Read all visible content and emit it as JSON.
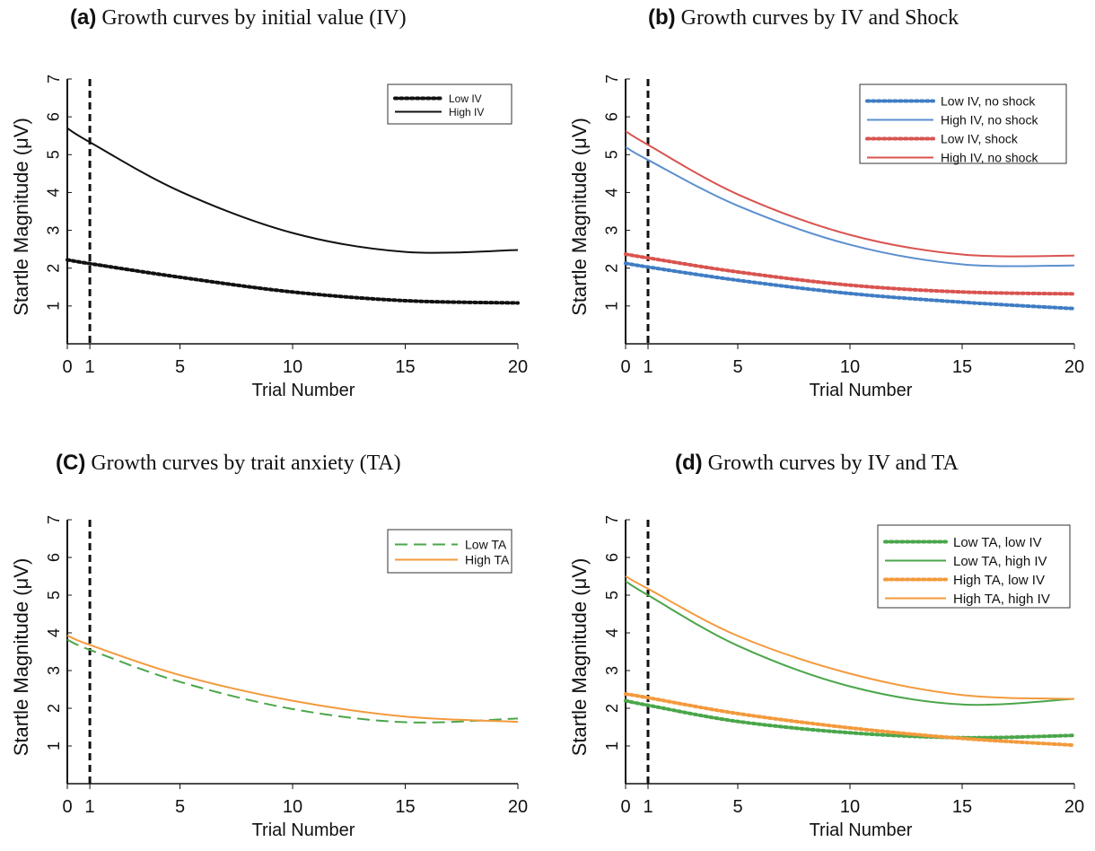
{
  "titles": [
    {
      "tag": "(a)",
      "text": "Growth curves by initial value (IV)"
    },
    {
      "tag": "(b)",
      "text": "Growth curves by IV and Shock"
    },
    {
      "tag": "(C)",
      "text": "Growth curves by trait anxiety (TA)"
    },
    {
      "tag": "(d)",
      "text": "Growth curves by IV and TA"
    }
  ],
  "chart_data": [
    {
      "type": "line",
      "title": "Growth curves by initial value (IV)",
      "xlabel": "Trial Number",
      "ylabel": "Startle Magnitude (μV)",
      "xlim": [
        0,
        20
      ],
      "ylim": [
        0,
        7
      ],
      "xticks": [
        0,
        1,
        5,
        10,
        15,
        20
      ],
      "yticks": [
        1,
        2,
        3,
        4,
        5,
        6,
        7
      ],
      "reference_line_x": 1,
      "legend_position": "top-right",
      "series": [
        {
          "name": "Low IV",
          "color": "#111111",
          "style": "dotted",
          "x": [
            0,
            1,
            5,
            10,
            15,
            20
          ],
          "y": [
            2.22,
            2.12,
            1.76,
            1.37,
            1.14,
            1.08
          ]
        },
        {
          "name": "High IV",
          "color": "#111111",
          "style": "solid",
          "x": [
            0,
            1,
            5,
            10,
            15,
            20
          ],
          "y": [
            5.7,
            5.33,
            4.03,
            2.93,
            2.43,
            2.48
          ]
        }
      ]
    },
    {
      "type": "line",
      "title": "Growth curves by IV and Shock",
      "xlabel": "Trial Number",
      "ylabel": "Startle Magnitude (μV)",
      "xlim": [
        0,
        20
      ],
      "ylim": [
        0,
        7
      ],
      "xticks": [
        0,
        1,
        5,
        10,
        15,
        20
      ],
      "yticks": [
        1,
        2,
        3,
        4,
        5,
        6,
        7
      ],
      "reference_line_x": 1,
      "legend_position": "top-right",
      "series": [
        {
          "name": "Low IV, no shock",
          "color": "#3f7cc4",
          "style": "dotted",
          "x": [
            0,
            1,
            5,
            10,
            15,
            20
          ],
          "y": [
            2.13,
            2.03,
            1.68,
            1.33,
            1.1,
            0.93
          ]
        },
        {
          "name": "High IV, no shock",
          "color": "#5b8fcf",
          "style": "solid",
          "x": [
            0,
            1,
            5,
            10,
            15,
            20
          ],
          "y": [
            5.2,
            4.86,
            3.65,
            2.62,
            2.1,
            2.07
          ]
        },
        {
          "name": "Low IV, shock",
          "color": "#d9534f",
          "style": "dotted",
          "x": [
            0,
            1,
            5,
            10,
            15,
            20
          ],
          "y": [
            2.37,
            2.27,
            1.9,
            1.55,
            1.37,
            1.32
          ]
        },
        {
          "name": "High IV, no shock",
          "color": "#d9534f",
          "style": "solid",
          "x": [
            0,
            1,
            5,
            10,
            15,
            20
          ],
          "y": [
            5.62,
            5.26,
            3.95,
            2.88,
            2.36,
            2.33
          ]
        }
      ]
    },
    {
      "type": "line",
      "title": "Growth curves by trait anxiety (TA)",
      "xlabel": "Trial Number",
      "ylabel": "Startle Magnitude (μV)",
      "xlim": [
        0,
        20
      ],
      "ylim": [
        0,
        7
      ],
      "xticks": [
        0,
        1,
        5,
        10,
        15,
        20
      ],
      "yticks": [
        1,
        2,
        3,
        4,
        5,
        6,
        7
      ],
      "reference_line_x": 1,
      "legend_position": "top-right",
      "series": [
        {
          "name": "Low TA",
          "color": "#4aa64a",
          "style": "dashed",
          "x": [
            0,
            1,
            5,
            10,
            15,
            20
          ],
          "y": [
            3.82,
            3.55,
            2.7,
            1.98,
            1.63,
            1.73
          ]
        },
        {
          "name": "High TA",
          "color": "#f39a3c",
          "style": "solid",
          "x": [
            0,
            1,
            5,
            10,
            15,
            20
          ],
          "y": [
            3.93,
            3.68,
            2.88,
            2.2,
            1.78,
            1.64
          ]
        }
      ]
    },
    {
      "type": "line",
      "title": "Growth curves by IV and TA",
      "xlabel": "Trial Number",
      "ylabel": "Startle Magnitude (μV)",
      "xlim": [
        0,
        20
      ],
      "ylim": [
        0,
        7
      ],
      "xticks": [
        0,
        1,
        5,
        10,
        15,
        20
      ],
      "yticks": [
        1,
        2,
        3,
        4,
        5,
        6,
        7
      ],
      "reference_line_x": 1,
      "legend_position": "top-right",
      "series": [
        {
          "name": "Low TA, low IV",
          "color": "#4aa64a",
          "style": "dotted",
          "x": [
            0,
            1,
            5,
            10,
            15,
            20
          ],
          "y": [
            2.2,
            2.08,
            1.65,
            1.35,
            1.22,
            1.28
          ]
        },
        {
          "name": "Low TA, high IV",
          "color": "#4aa64a",
          "style": "solid",
          "x": [
            0,
            1,
            5,
            10,
            15,
            20
          ],
          "y": [
            5.37,
            5.0,
            3.66,
            2.58,
            2.1,
            2.25
          ]
        },
        {
          "name": "High TA, low IV",
          "color": "#f39a3c",
          "style": "dotted",
          "x": [
            0,
            1,
            5,
            10,
            15,
            20
          ],
          "y": [
            2.38,
            2.28,
            1.86,
            1.48,
            1.2,
            1.02
          ]
        },
        {
          "name": "High TA, high IV",
          "color": "#f39a3c",
          "style": "solid",
          "x": [
            0,
            1,
            5,
            10,
            15,
            20
          ],
          "y": [
            5.5,
            5.17,
            3.92,
            2.92,
            2.35,
            2.25
          ]
        }
      ]
    }
  ]
}
